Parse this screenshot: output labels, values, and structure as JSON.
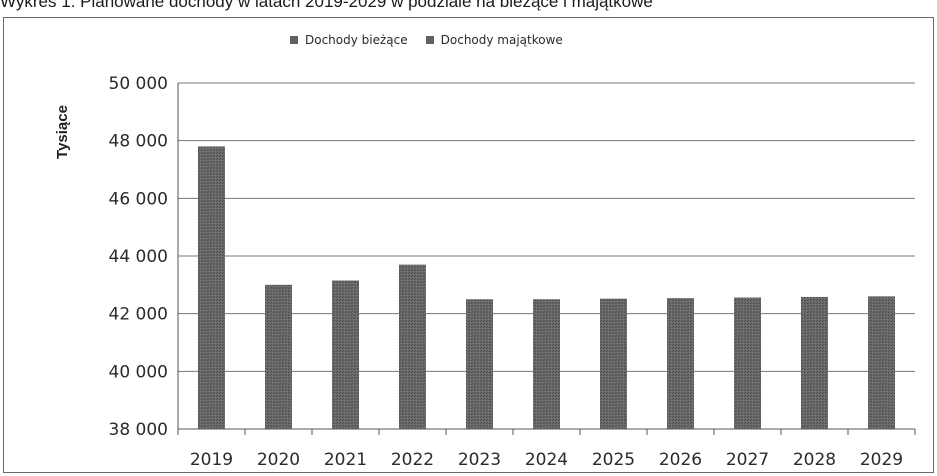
{
  "caption": "Wykres 1. Planowane dochody w latach 2019-2029 w podziale na bieżące i majątkowe",
  "colors": {
    "bar": "#6a6a6a",
    "bar_dark": "#4a4a4a",
    "grid": "#777777",
    "axis": "#555555"
  },
  "legend": {
    "items": [
      {
        "label": "Dochody bieżące",
        "icon": "square-swatch-icon"
      },
      {
        "label": "Dochody majątkowe",
        "icon": "square-swatch-icon"
      }
    ]
  },
  "chart_data": {
    "type": "bar",
    "title": "",
    "xlabel": "",
    "ylabel": "Tysiące",
    "categories": [
      "2019",
      "2020",
      "2021",
      "2022",
      "2023",
      "2024",
      "2025",
      "2026",
      "2027",
      "2028",
      "2029"
    ],
    "series": [
      {
        "name": "Dochody bieżące",
        "values": [
          47800,
          43000,
          43150,
          43700,
          42500,
          42500,
          42520,
          42540,
          42560,
          42580,
          42600
        ]
      }
    ],
    "ylim": [
      38000,
      50000
    ],
    "yticks": [
      38000,
      40000,
      42000,
      44000,
      46000,
      48000,
      50000
    ],
    "ytick_labels": [
      "38 000",
      "40 000",
      "42 000",
      "44 000",
      "46 000",
      "48 000",
      "50 000"
    ],
    "grid": true,
    "legend_position": "top-center"
  }
}
